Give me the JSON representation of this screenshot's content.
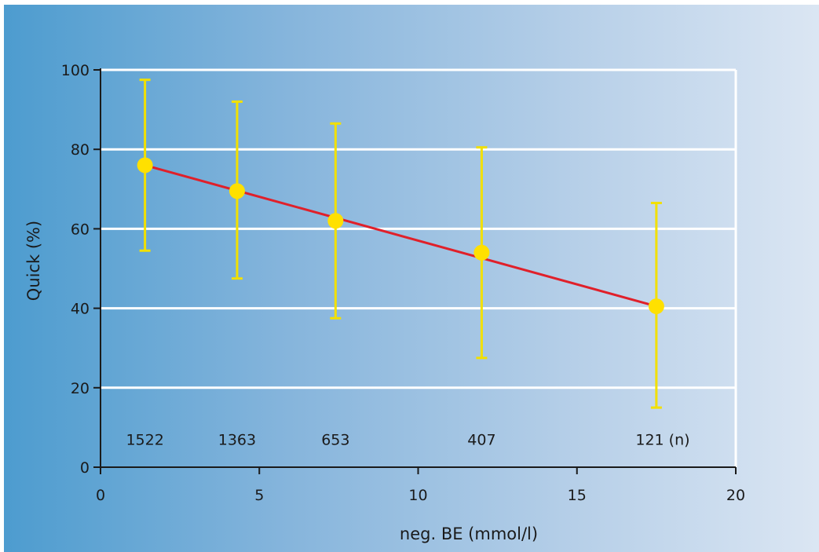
{
  "chart_data": {
    "type": "line",
    "title": "",
    "xlabel": "neg. BE (mmol/l)",
    "ylabel": "Quick (%)",
    "xlim": [
      0,
      20
    ],
    "ylim": [
      0,
      100
    ],
    "x_ticks": [
      0,
      5,
      10,
      15,
      20
    ],
    "y_ticks": [
      0,
      20,
      40,
      60,
      80,
      100
    ],
    "grid": "horizontal",
    "colors": {
      "points": "#ffe000",
      "error_bars": "#f2e000",
      "regression_line": "#e0202a",
      "grid": "#ffffff",
      "axis": "#1a1a1a"
    },
    "series": [
      {
        "x": [
          1.4,
          4.3,
          7.4,
          12.0,
          17.5
        ],
        "y": [
          76,
          69.5,
          62,
          54,
          40.5
        ],
        "y_upper": [
          97.5,
          92,
          86.5,
          80.5,
          66.5
        ],
        "y_lower": [
          54.5,
          47.5,
          37.5,
          27.5,
          15
        ]
      }
    ],
    "regression_line": {
      "x": [
        1.4,
        17.5
      ],
      "y": [
        76,
        40.5
      ]
    },
    "annotations": [
      {
        "text": "1522",
        "x": 1.4,
        "y": 7
      },
      {
        "text": "1363",
        "x": 4.3,
        "y": 7
      },
      {
        "text": "653",
        "x": 7.4,
        "y": 7
      },
      {
        "text": "407",
        "x": 12.0,
        "y": 7
      },
      {
        "text": "121 (n)",
        "x": 17.7,
        "y": 7
      }
    ]
  }
}
